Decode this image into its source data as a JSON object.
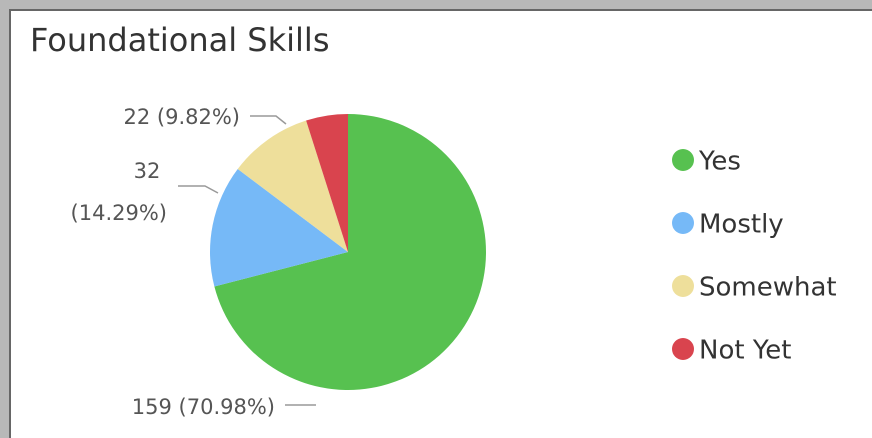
{
  "chart_data": {
    "type": "pie",
    "title": "Foundational Skills",
    "categories": [
      "Yes",
      "Mostly",
      "Somewhat",
      "Not Yet"
    ],
    "values": [
      159,
      32,
      22,
      11
    ],
    "value_labels": [
      "159 (70.98%)",
      "32 (14.29%)",
      "22 (9.82%)",
      null
    ],
    "colors": [
      "#57c150",
      "#76b9f7",
      "#eedf9b",
      "#d9444e"
    ],
    "legend": "right"
  }
}
